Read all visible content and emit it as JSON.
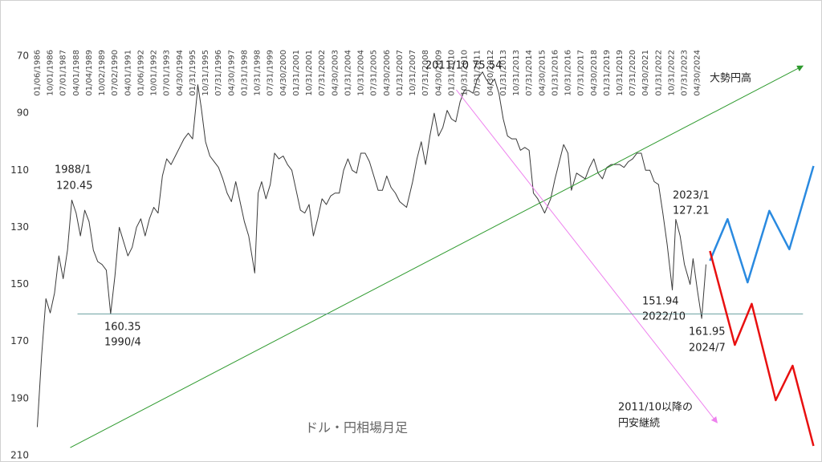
{
  "chart_data": {
    "type": "line",
    "xlim": [
      1985.7,
      2031.1
    ],
    "ylim": [
      210,
      70
    ],
    "yticks": [
      70,
      90,
      110,
      130,
      150,
      170,
      190,
      210
    ],
    "xticks": [
      {
        "value": 1986.0,
        "label": "01/06/1986"
      },
      {
        "value": 1986.75,
        "label": "10/01/1986"
      },
      {
        "value": 1987.5,
        "label": "07/01/1987"
      },
      {
        "value": 1988.25,
        "label": "04/01/1988"
      },
      {
        "value": 1989.0,
        "label": "01/04/1989"
      },
      {
        "value": 1989.75,
        "label": "10/02/1989"
      },
      {
        "value": 1990.5,
        "label": "07/02/1990"
      },
      {
        "value": 1991.25,
        "label": "04/01/1991"
      },
      {
        "value": 1992.0,
        "label": "01/06/1992"
      },
      {
        "value": 1992.75,
        "label": "10/01/1992"
      },
      {
        "value": 1993.5,
        "label": "07/01/1993"
      },
      {
        "value": 1994.25,
        "label": "04/30/1994"
      },
      {
        "value": 1995.0,
        "label": "01/31/1995"
      },
      {
        "value": 1995.75,
        "label": "10/31/1995"
      },
      {
        "value": 1996.5,
        "label": "07/31/1996"
      },
      {
        "value": 1997.25,
        "label": "04/30/1997"
      },
      {
        "value": 1998.0,
        "label": "01/31/1998"
      },
      {
        "value": 1998.75,
        "label": "10/31/1998"
      },
      {
        "value": 1999.5,
        "label": "07/31/1999"
      },
      {
        "value": 2000.25,
        "label": "04/30/2000"
      },
      {
        "value": 2001.0,
        "label": "01/31/2001"
      },
      {
        "value": 2001.75,
        "label": "10/31/2001"
      },
      {
        "value": 2002.5,
        "label": "07/31/2002"
      },
      {
        "value": 2003.25,
        "label": "04/30/2003"
      },
      {
        "value": 2004.0,
        "label": "01/31/2004"
      },
      {
        "value": 2004.75,
        "label": "10/31/2004"
      },
      {
        "value": 2005.5,
        "label": "07/31/2005"
      },
      {
        "value": 2006.25,
        "label": "04/30/2006"
      },
      {
        "value": 2007.0,
        "label": "01/31/2007"
      },
      {
        "value": 2007.75,
        "label": "10/31/2007"
      },
      {
        "value": 2008.5,
        "label": "07/31/2008"
      },
      {
        "value": 2009.25,
        "label": "04/30/2009"
      },
      {
        "value": 2010.0,
        "label": "01/31/2010"
      },
      {
        "value": 2010.75,
        "label": "10/31/2010"
      },
      {
        "value": 2011.5,
        "label": "07/31/2011"
      },
      {
        "value": 2012.25,
        "label": "04/30/2012"
      },
      {
        "value": 2013.0,
        "label": "01/31/2013"
      },
      {
        "value": 2013.75,
        "label": "10/31/2013"
      },
      {
        "value": 2014.5,
        "label": "07/31/2014"
      },
      {
        "value": 2015.25,
        "label": "04/30/2015"
      },
      {
        "value": 2016.0,
        "label": "01/31/2016"
      },
      {
        "value": 2016.75,
        "label": "10/31/2016"
      },
      {
        "value": 2017.5,
        "label": "07/31/2017"
      },
      {
        "value": 2018.25,
        "label": "04/30/2018"
      },
      {
        "value": 2019.0,
        "label": "01/31/2019"
      },
      {
        "value": 2019.75,
        "label": "10/31/2019"
      },
      {
        "value": 2020.5,
        "label": "07/31/2020"
      },
      {
        "value": 2021.25,
        "label": "04/30/2021"
      },
      {
        "value": 2022.0,
        "label": "01/31/2022"
      },
      {
        "value": 2022.75,
        "label": "10/31/2022"
      },
      {
        "value": 2023.5,
        "label": "07/31/2023"
      },
      {
        "value": 2024.25,
        "label": "04/30/2024"
      }
    ],
    "series": [
      {
        "color": "#3a3a3a",
        "x": [
          1986.0,
          1986.25,
          1986.5,
          1986.75,
          1987.0,
          1987.25,
          1987.5,
          1987.75,
          1988.0,
          1988.25,
          1988.5,
          1988.75,
          1989.0,
          1989.25,
          1989.5,
          1989.75,
          1990.0,
          1990.25,
          1990.5,
          1990.75,
          1991.0,
          1991.25,
          1991.5,
          1991.75,
          1992.0,
          1992.25,
          1992.5,
          1992.75,
          1993.0,
          1993.25,
          1993.5,
          1993.75,
          1994.0,
          1994.25,
          1994.5,
          1994.75,
          1995.0,
          1995.25,
          1995.3,
          1995.5,
          1995.75,
          1996.0,
          1996.25,
          1996.5,
          1996.75,
          1997.0,
          1997.25,
          1997.5,
          1997.75,
          1998.0,
          1998.25,
          1998.6,
          1998.8,
          1999.0,
          1999.25,
          1999.5,
          1999.75,
          2000.0,
          2000.25,
          2000.5,
          2000.75,
          2001.0,
          2001.25,
          2001.5,
          2001.75,
          2002.0,
          2002.25,
          2002.5,
          2002.75,
          2003.0,
          2003.25,
          2003.5,
          2003.75,
          2004.0,
          2004.25,
          2004.5,
          2004.75,
          2005.0,
          2005.25,
          2005.5,
          2005.75,
          2006.0,
          2006.25,
          2006.5,
          2006.75,
          2007.0,
          2007.4,
          2007.75,
          2008.0,
          2008.25,
          2008.5,
          2008.75,
          2009.0,
          2009.25,
          2009.5,
          2009.75,
          2010.0,
          2010.25,
          2010.5,
          2010.75,
          2011.0,
          2011.25,
          2011.5,
          2011.8,
          2012.0,
          2012.25,
          2012.5,
          2012.75,
          2013.0,
          2013.25,
          2013.5,
          2013.75,
          2014.0,
          2014.25,
          2014.5,
          2014.75,
          2015.0,
          2015.4,
          2015.75,
          2016.0,
          2016.25,
          2016.5,
          2016.75,
          2016.95,
          2017.25,
          2017.5,
          2017.75,
          2018.0,
          2018.25,
          2018.5,
          2018.75,
          2019.0,
          2019.25,
          2019.5,
          2019.75,
          2020.0,
          2020.25,
          2020.5,
          2020.75,
          2021.0,
          2021.25,
          2021.5,
          2021.75,
          2022.0,
          2022.25,
          2022.5,
          2022.8,
          2023.0,
          2023.25,
          2023.5,
          2023.83,
          2024.0,
          2024.25,
          2024.5,
          2024.75
        ],
        "values": [
          200,
          175,
          155,
          160,
          153,
          140,
          148,
          138,
          120.45,
          125,
          133,
          124,
          128,
          138,
          142,
          143,
          145,
          160.35,
          147,
          130,
          135,
          140,
          137,
          130,
          127,
          133,
          127,
          123,
          125,
          112,
          106,
          108,
          105,
          102,
          99,
          97,
          99,
          84,
          80,
          88,
          100,
          105,
          107,
          109,
          113,
          118,
          121,
          114,
          121,
          128,
          133,
          146,
          118,
          114,
          120,
          115,
          104,
          106,
          105,
          108,
          110,
          117,
          124,
          125,
          122,
          133,
          127,
          120,
          122,
          119,
          118,
          118,
          110,
          106,
          110,
          111,
          104,
          104,
          107,
          112,
          117,
          117,
          112,
          116,
          118,
          121,
          123,
          114,
          106,
          100,
          108,
          98,
          90,
          98,
          95,
          89,
          92,
          93,
          86,
          82,
          82,
          83,
          78,
          75.54,
          78,
          80,
          78,
          83,
          92,
          98,
          99,
          99,
          103,
          102,
          103,
          118,
          120,
          125,
          120,
          113,
          107,
          101,
          104,
          117,
          111,
          112,
          113,
          109,
          106,
          111,
          113,
          109,
          108,
          108,
          108,
          109,
          107,
          106,
          104,
          104,
          110,
          110,
          114,
          115,
          125,
          136,
          151.94,
          127.21,
          133,
          143,
          150,
          141,
          152,
          161.95,
          143
        ]
      },
      {
        "color": "#2e9a2e",
        "arrow": true,
        "x": [
          1987.91,
          2030.37
        ],
        "values": [
          207.2,
          73.4
        ]
      },
      {
        "color": "#ee82ee",
        "arrow": true,
        "x": [
          2010.28,
          2025.4
        ],
        "values": [
          81.8,
          198.5
        ]
      },
      {
        "color": "#6a9fa0",
        "x": [
          1988.33,
          2030.37
        ],
        "values": [
          160.35,
          160.35
        ]
      },
      {
        "color": "#2a8ae0",
        "width": 2.5,
        "x": [
          2024.98,
          2026.0,
          2027.16,
          2028.42,
          2029.58,
          2030.98
        ],
        "values": [
          141.7,
          127.1,
          149.3,
          124.2,
          137.7,
          108.5
        ]
      },
      {
        "color": "#e81010",
        "width": 2.5,
        "x": [
          2024.98,
          2026.42,
          2027.4,
          2028.79,
          2029.77,
          2030.98
        ],
        "values": [
          138.3,
          171.2,
          156.8,
          190.6,
          178.5,
          206.6
        ]
      }
    ],
    "annotations": [
      "1988/1",
      "120.45",
      "160.35",
      "1990/4",
      "2011/10 75.54",
      "大勢円高",
      "2023/1",
      "127.21",
      "151.94",
      "2022/10",
      "161.95",
      "2024/7",
      "ドル・円相場月足",
      "2011/10以降の",
      "円安継続"
    ]
  }
}
